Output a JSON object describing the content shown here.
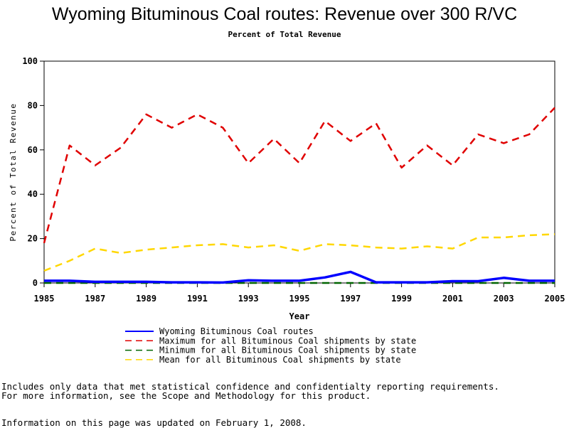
{
  "chart_data": {
    "type": "line",
    "title": "Wyoming Bituminous Coal routes: Revenue over 300 R/VC",
    "subtitle": "Percent of Total Revenue",
    "xlabel": "Year",
    "ylabel": "Percent of Total Revenue",
    "xlim": [
      1985,
      2005
    ],
    "ylim": [
      0,
      100
    ],
    "x_ticks": [
      "1985",
      "1987",
      "1989",
      "1991",
      "1993",
      "1995",
      "1997",
      "1999",
      "2001",
      "2003",
      "2005"
    ],
    "y_ticks": [
      "0",
      "20",
      "40",
      "60",
      "80",
      "100"
    ],
    "grid": false,
    "legend_position": "bottom",
    "x": [
      1985,
      1986,
      1987,
      1988,
      1989,
      1990,
      1991,
      1992,
      1993,
      1994,
      1995,
      1996,
      1997,
      1998,
      1999,
      2000,
      2001,
      2002,
      2003,
      2004,
      2005
    ],
    "series": [
      {
        "name": "Wyoming Bituminous Coal routes",
        "color": "#0000ff",
        "style": "solid",
        "values": [
          1.0,
          1.0,
          0.5,
          0.5,
          0.5,
          0.3,
          0.3,
          0.2,
          1.2,
          1.0,
          1.0,
          2.5,
          5.0,
          0.3,
          0.3,
          0.3,
          0.8,
          0.8,
          2.3,
          1.0,
          1.0
        ]
      },
      {
        "name": "Maximum for all Bituminous Coal shipments by state",
        "color": "#e00000",
        "style": "dashed",
        "values": [
          18,
          62,
          53,
          61,
          76,
          70,
          76,
          70,
          54,
          65,
          54,
          73,
          64,
          72,
          52,
          62,
          53,
          67,
          63,
          67,
          79
        ]
      },
      {
        "name": "Minimum for all Bituminous Coal shipments by state",
        "color": "#006400",
        "style": "dashed",
        "values": [
          0,
          0,
          0,
          0,
          0,
          0,
          0,
          0,
          0,
          0,
          0,
          0,
          0,
          0,
          0,
          0,
          0,
          0,
          0,
          0,
          0
        ]
      },
      {
        "name": "Mean for all Bituminous Coal shipments by state",
        "color": "#ffd700",
        "style": "dashed",
        "values": [
          5.5,
          10,
          15.5,
          13.5,
          15,
          16,
          17,
          17.5,
          16,
          17,
          14.5,
          17.5,
          17,
          16,
          15.5,
          16.5,
          15.5,
          20.5,
          20.5,
          21.5,
          22
        ]
      }
    ]
  },
  "footnotes": {
    "line1": "Includes only data that met statistical confidence and confidentialty reporting requirements.",
    "line2": "For more information, see the Scope and Methodology for this product.",
    "updated": "Information on this page was updated on February 1, 2008."
  }
}
